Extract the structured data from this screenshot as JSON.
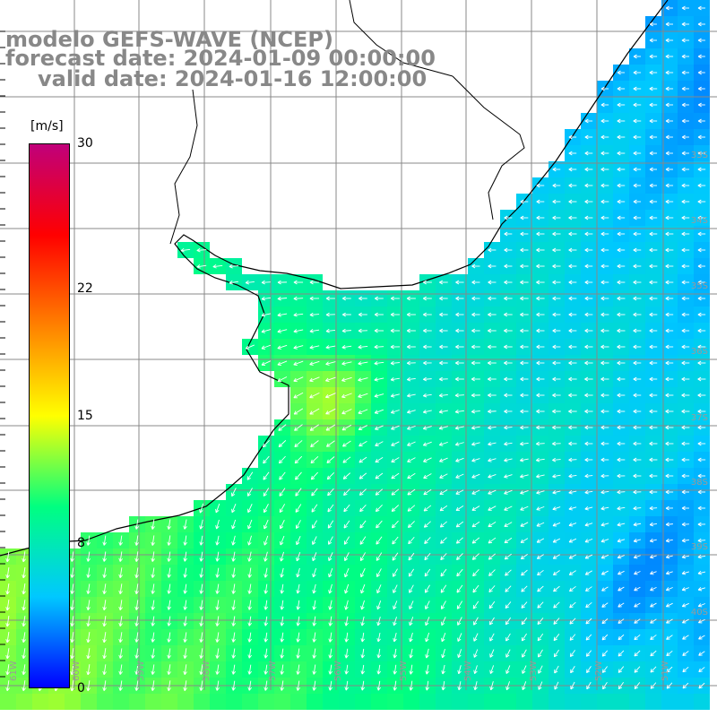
{
  "title": {
    "line1": "modelo GEFS-WAVE (NCEP)",
    "line2": "forecast date: 2024-01-09 00:00:00",
    "line3": "valid date: 2024-01-16 12:00:00"
  },
  "colorbar": {
    "unit": "[m/s]",
    "ticks": [
      {
        "label": "30",
        "value": 30
      },
      {
        "label": "22",
        "value": 22
      },
      {
        "label": "15",
        "value": 15
      },
      {
        "label": "8",
        "value": 8
      },
      {
        "label": "0",
        "value": 0
      }
    ],
    "stops": [
      "#0000ff",
      "#00c8ff",
      "#00ff80",
      "#ffff00",
      "#ff8000",
      "#ff0000",
      "#c0007a"
    ]
  },
  "map": {
    "region": "Río de la Plata / Uruguay coast",
    "lat_labels": [
      "33S",
      "34S",
      "35S",
      "36S",
      "37S",
      "38S",
      "39S",
      "40S"
    ],
    "lon_labels": [
      "61W",
      "60W",
      "59W",
      "58W",
      "57W",
      "56W",
      "55W",
      "54W",
      "53W",
      "52W",
      "51W"
    ],
    "colors": {
      "land": "#ffffff",
      "grid": "#888888",
      "coast": "#000000",
      "arrows": "#ffffff"
    }
  }
}
